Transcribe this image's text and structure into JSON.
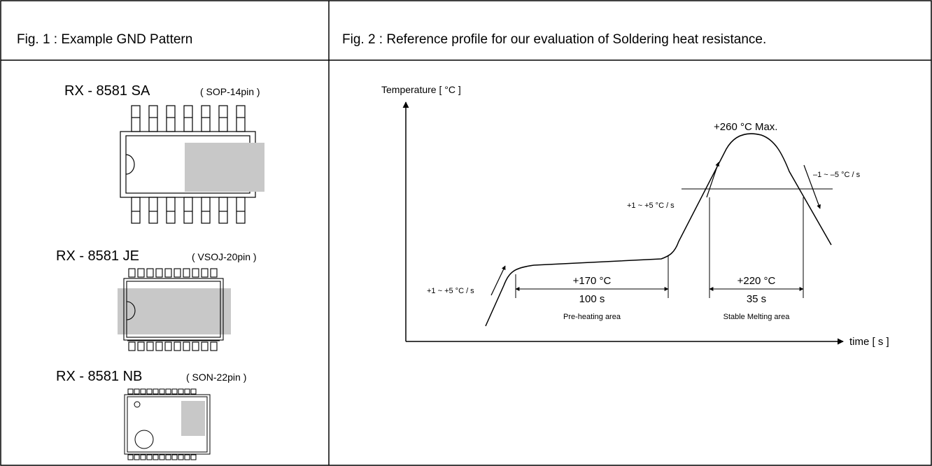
{
  "fig1": {
    "title": "Fig. 1 : Example GND Pattern",
    "packages": [
      {
        "name": "RX - 8581 SA",
        "package": "( SOP-14pin )"
      },
      {
        "name": "RX - 8581 JE",
        "package": "( VSOJ-20pin )"
      },
      {
        "name": "RX - 8581 NB",
        "package": "( SON-22pin )"
      }
    ]
  },
  "fig2": {
    "title": "Fig. 2 : Reference profile for our evaluation of Soldering heat resistance.",
    "y_axis_label": "Temperature [ °C ]",
    "x_axis_label": "time [ s ]",
    "peak_label": "+260 °C  Max.",
    "ramp_up_low": "+1 ~ +5 °C / s",
    "ramp_up_high": "+1 ~ +5 °C / s",
    "ramp_down": "–1 ~ –5 °C / s",
    "preheat": {
      "temp": "+170 °C",
      "time": "100 s",
      "area": "Pre-heating area"
    },
    "melting": {
      "temp": "+220 °C",
      "time": "35 s",
      "area": "Stable Melting area"
    }
  },
  "colors": {
    "line": "#000000",
    "gnd_fill": "#c8c8c8"
  }
}
